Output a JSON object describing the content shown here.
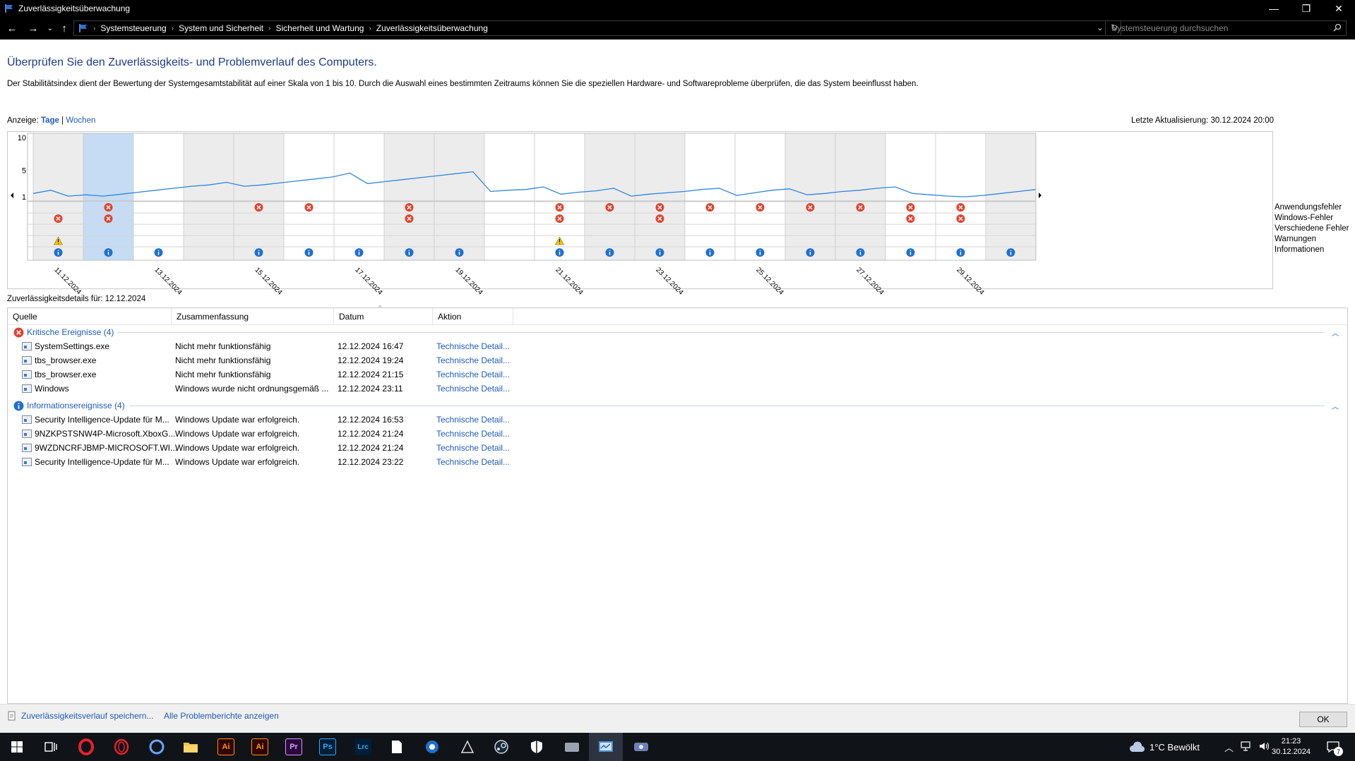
{
  "window": {
    "title": "Zuverlässigkeitsüberwachung",
    "minimize": "—",
    "maximize": "❐",
    "close": "✕"
  },
  "address_bar": {
    "breadcrumbs": [
      "Systemsteuerung",
      "System und Sicherheit",
      "Sicherheit und Wartung",
      "Zuverlässigkeitsüberwachung"
    ],
    "search_placeholder": "Systemsteuerung durchsuchen"
  },
  "page": {
    "heading": "Überprüfen Sie den Zuverlässigkeits- und Problemverlauf des Computers.",
    "description": "Der Stabilitätsindex dient der Bewertung der Systemgesamtstabilität auf einer Skala von 1 bis 10. Durch die Auswahl eines bestimmten Zeitraums können Sie die speziellen Hardware- und Softwareprobleme überprüfen, die das System beeinflusst haben.",
    "view_label": "Anzeige:",
    "view_days": "Tage",
    "view_sep": "|",
    "view_weeks": "Wochen",
    "last_update": "Letzte Aktualisierung: 30.12.2024 20:00",
    "details_for": "Zuverlässigkeitsdetails für: 12.12.2024"
  },
  "chart_data": {
    "type": "line",
    "y_ticks": [
      "10",
      "5",
      "1"
    ],
    "ylim": [
      1,
      10
    ],
    "date_labels": [
      "11.12.2024",
      "13.12.2024",
      "15.12.2024",
      "17.12.2024",
      "19.12.2024",
      "21.12.2024",
      "23.12.2024",
      "25.12.2024",
      "27.12.2024",
      "29.12.2024"
    ],
    "selected_day": "12.12.2024",
    "stability_index": [
      1.5,
      2.0,
      1.1,
      1.3,
      1.1,
      1.4,
      1.7,
      2.0,
      2.3,
      2.6,
      2.8,
      3.2,
      2.6,
      2.8,
      3.1,
      3.4,
      3.7,
      4.0,
      4.6,
      3.0,
      3.3,
      3.6,
      3.9,
      4.2,
      4.5,
      4.8,
      1.8,
      2.0,
      2.1,
      2.5,
      1.4,
      1.7,
      1.9,
      2.3,
      1.1,
      1.4,
      1.6,
      1.8,
      2.1,
      2.3,
      1.2,
      1.6,
      2.0,
      2.2,
      1.3,
      1.5,
      1.8,
      2.0,
      2.3,
      2.5,
      1.5,
      1.3,
      1.1,
      1.0,
      1.2,
      1.5,
      1.8,
      2.1
    ],
    "rows": [
      "Anwendungsfehler",
      "Windows-Fehler",
      "Verschiedene Fehler",
      "Warnungen",
      "Informationen"
    ],
    "events": {
      "Anwendungsfehler": [
        1,
        4,
        5,
        7,
        10,
        11,
        12,
        13,
        14,
        15,
        16,
        17,
        18
      ],
      "Windows-Fehler": [
        0,
        1,
        7,
        10,
        12,
        17,
        18
      ],
      "Verschiedene Fehler": [],
      "Warnungen": [
        0,
        10
      ],
      "Informationen": [
        0,
        1,
        2,
        4,
        5,
        6,
        7,
        8,
        10,
        11,
        12,
        13,
        14,
        15,
        16,
        17,
        18,
        19
      ]
    }
  },
  "list": {
    "columns": [
      "Quelle",
      "Zusammenfassung",
      "Datum",
      "Aktion"
    ],
    "groups": [
      {
        "title": "Kritische Ereignisse (4)",
        "icon": "error-icon",
        "rows": [
          {
            "source": "SystemSettings.exe",
            "summary": "Nicht mehr funktionsfähig",
            "date": "12.12.2024 16:47",
            "action": "Technische Detail..."
          },
          {
            "source": "tbs_browser.exe",
            "summary": "Nicht mehr funktionsfähig",
            "date": "12.12.2024 19:24",
            "action": "Technische Detail..."
          },
          {
            "source": "tbs_browser.exe",
            "summary": "Nicht mehr funktionsfähig",
            "date": "12.12.2024 21:15",
            "action": "Technische Detail..."
          },
          {
            "source": "Windows",
            "summary": "Windows wurde nicht ordnungsgemäß ...",
            "date": "12.12.2024 23:11",
            "action": "Technische Detail..."
          }
        ]
      },
      {
        "title": "Informationsereignisse (4)",
        "icon": "info-icon",
        "rows": [
          {
            "source": "Security Intelligence-Update für M...",
            "summary": "Windows Update war erfolgreich.",
            "date": "12.12.2024 16:53",
            "action": "Technische Detail..."
          },
          {
            "source": "9NZKPSTSNW4P-Microsoft.XboxG...",
            "summary": "Windows Update war erfolgreich.",
            "date": "12.12.2024 21:24",
            "action": "Technische Detail..."
          },
          {
            "source": "9WZDNCRFJBMP-MICROSOFT.WI...",
            "summary": "Windows Update war erfolgreich.",
            "date": "12.12.2024 21:24",
            "action": "Technische Detail..."
          },
          {
            "source": "Security Intelligence-Update für M...",
            "summary": "Windows Update war erfolgreich.",
            "date": "12.12.2024 23:22",
            "action": "Technische Detail..."
          }
        ]
      }
    ]
  },
  "footer": {
    "save_history": "Zuverlässigkeitsverlauf speichern...",
    "all_reports": "Alle Problemberichte anzeigen",
    "ok": "OK"
  },
  "taskbar": {
    "apps": [
      "start-icon",
      "task-view-icon",
      "opera-gx-icon",
      "opera-icon",
      "cortana-icon",
      "file-explorer-icon",
      "illustrator-icon",
      "illustrator-icon",
      "premiere-icon",
      "photoshop-icon",
      "lightroom-classic-icon",
      "document-icon",
      "app-icon",
      "game-icon",
      "steam-icon",
      "security-icon",
      "app-icon",
      "reliability-monitor-icon",
      "app-icon"
    ],
    "app_labels": {
      "illustrator": "Ai",
      "premiere": "Pr",
      "photoshop": "Ps",
      "lightroom": "Lrc"
    },
    "weather": "1°C  Bewölkt",
    "time": "21:23",
    "date": "30.12.2024",
    "notification_count": "7",
    "accent": "#2b6fd6"
  }
}
